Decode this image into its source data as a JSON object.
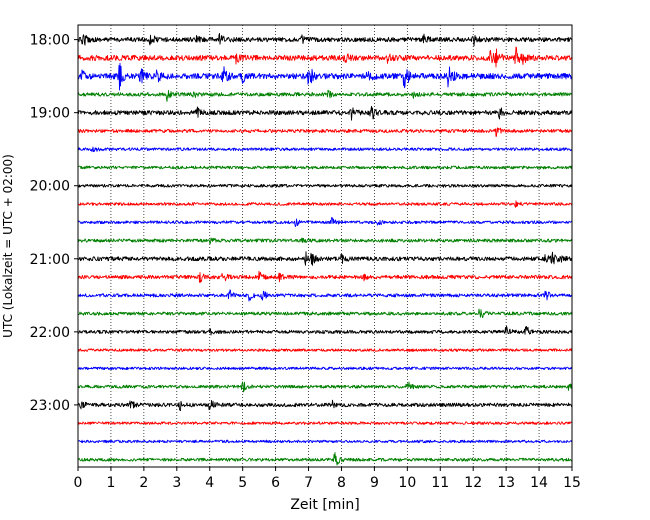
{
  "chart_data": {
    "type": "line",
    "title": "",
    "xlabel": "Zeit  [min]",
    "ylabel": "UTC (Lokalzeit = UTC + 02:00)",
    "xlim": [
      0,
      15
    ],
    "x_ticks": [
      "0",
      "1",
      "2",
      "3",
      "4",
      "5",
      "6",
      "7",
      "8",
      "9",
      "10",
      "11",
      "12",
      "13",
      "14",
      "15"
    ],
    "y_ticks": [
      "18:00",
      "19:00",
      "20:00",
      "21:00",
      "22:00",
      "23:00"
    ],
    "grid": "vertical dotted at each minute",
    "legend": "none",
    "color_cycle": [
      "#000000",
      "#ff0000",
      "#0000ff",
      "#008000"
    ],
    "trace_interval_min": 15,
    "traces": [
      {
        "start": "18:00",
        "color": "#000000",
        "noise": 2.2,
        "events": [
          [
            0.15,
            7
          ],
          [
            2.2,
            6
          ],
          [
            3.6,
            4
          ],
          [
            4.3,
            5
          ],
          [
            6.8,
            3
          ],
          [
            10.5,
            6
          ],
          [
            12.0,
            6
          ]
        ]
      },
      {
        "start": "18:15",
        "color": "#ff0000",
        "noise": 2.6,
        "events": [
          [
            4.8,
            4
          ],
          [
            8.1,
            4
          ],
          [
            9.4,
            4
          ],
          [
            12.5,
            9
          ],
          [
            12.7,
            8
          ],
          [
            13.3,
            9
          ],
          [
            13.5,
            6
          ]
        ]
      },
      {
        "start": "18:30",
        "color": "#0000ff",
        "noise": 2.8,
        "events": [
          [
            0.1,
            5
          ],
          [
            1.25,
            14
          ],
          [
            1.9,
            10
          ],
          [
            2.4,
            6
          ],
          [
            4.4,
            12
          ],
          [
            5.0,
            6
          ],
          [
            7.0,
            13
          ],
          [
            8.8,
            11
          ],
          [
            9.9,
            18
          ],
          [
            11.25,
            12
          ]
        ]
      },
      {
        "start": "18:45",
        "color": "#008000",
        "noise": 1.8,
        "events": [
          [
            2.7,
            6
          ],
          [
            3.5,
            3
          ],
          [
            7.6,
            3
          ],
          [
            10.2,
            3
          ]
        ]
      },
      {
        "start": "19:00",
        "color": "#000000",
        "noise": 2.2,
        "events": [
          [
            3.6,
            5
          ],
          [
            8.3,
            6
          ],
          [
            8.9,
            8
          ],
          [
            12.8,
            5
          ]
        ]
      },
      {
        "start": "19:15",
        "color": "#ff0000",
        "noise": 1.6,
        "events": [
          [
            12.7,
            5
          ]
        ]
      },
      {
        "start": "19:30",
        "color": "#0000ff",
        "noise": 1.4,
        "events": [
          [
            0.45,
            4
          ]
        ]
      },
      {
        "start": "19:45",
        "color": "#008000",
        "noise": 1.4,
        "events": []
      },
      {
        "start": "20:00",
        "color": "#000000",
        "noise": 1.4,
        "events": [
          [
            10.9,
            3
          ]
        ]
      },
      {
        "start": "20:15",
        "color": "#ff0000",
        "noise": 1.4,
        "events": [
          [
            13.3,
            3
          ]
        ]
      },
      {
        "start": "20:30",
        "color": "#0000ff",
        "noise": 1.4,
        "events": [
          [
            6.6,
            4
          ],
          [
            7.7,
            4
          ],
          [
            9.1,
            3
          ]
        ]
      },
      {
        "start": "20:45",
        "color": "#008000",
        "noise": 1.6,
        "events": [
          [
            4.0,
            3
          ],
          [
            6.8,
            3
          ]
        ]
      },
      {
        "start": "21:00",
        "color": "#000000",
        "noise": 2.0,
        "events": [
          [
            6.9,
            8
          ],
          [
            7.1,
            6
          ],
          [
            8.0,
            4
          ],
          [
            14.2,
            5
          ],
          [
            14.4,
            6
          ],
          [
            14.6,
            5
          ]
        ]
      },
      {
        "start": "21:15",
        "color": "#ff0000",
        "noise": 1.8,
        "events": [
          [
            3.7,
            6
          ],
          [
            4.4,
            6
          ],
          [
            5.5,
            5
          ],
          [
            6.1,
            4
          ],
          [
            8.7,
            3
          ]
        ]
      },
      {
        "start": "21:30",
        "color": "#0000ff",
        "noise": 1.6,
        "events": [
          [
            4.6,
            5
          ],
          [
            5.2,
            5
          ],
          [
            5.6,
            5
          ],
          [
            14.2,
            5
          ]
        ]
      },
      {
        "start": "21:45",
        "color": "#008000",
        "noise": 1.6,
        "events": [
          [
            12.2,
            6
          ]
        ]
      },
      {
        "start": "22:00",
        "color": "#000000",
        "noise": 1.6,
        "events": [
          [
            4.0,
            3
          ],
          [
            13.0,
            5
          ],
          [
            13.6,
            6
          ]
        ]
      },
      {
        "start": "22:15",
        "color": "#ff0000",
        "noise": 1.3,
        "events": []
      },
      {
        "start": "22:30",
        "color": "#0000ff",
        "noise": 1.3,
        "events": []
      },
      {
        "start": "22:45",
        "color": "#008000",
        "noise": 1.5,
        "events": [
          [
            5.0,
            7
          ],
          [
            10.0,
            6
          ],
          [
            14.9,
            3
          ]
        ]
      },
      {
        "start": "23:00",
        "color": "#000000",
        "noise": 1.8,
        "events": [
          [
            0.1,
            4
          ],
          [
            1.6,
            4
          ],
          [
            3.1,
            5
          ],
          [
            4.0,
            6
          ],
          [
            7.7,
            4
          ]
        ]
      },
      {
        "start": "23:15",
        "color": "#ff0000",
        "noise": 1.3,
        "events": []
      },
      {
        "start": "23:30",
        "color": "#0000ff",
        "noise": 1.3,
        "events": []
      },
      {
        "start": "23:45",
        "color": "#008000",
        "noise": 1.5,
        "events": [
          [
            7.8,
            9
          ]
        ]
      }
    ]
  }
}
